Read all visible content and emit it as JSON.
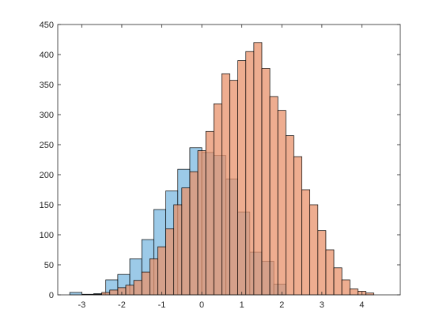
{
  "chart_data": {
    "type": "bar",
    "title": "",
    "xlabel": "",
    "ylabel": "",
    "xlim": [
      -3.6,
      4.96
    ],
    "ylim": [
      0,
      450
    ],
    "xticks": [
      -3,
      -2,
      -1,
      0,
      1,
      2,
      3,
      4
    ],
    "xtick_labels": [
      "-3",
      "-2",
      "-1",
      "0",
      "1",
      "2",
      "3",
      "4"
    ],
    "yticks": [
      0,
      50,
      100,
      150,
      200,
      250,
      300,
      350,
      400,
      450
    ],
    "ytick_labels": [
      "0",
      "50",
      "100",
      "150",
      "200",
      "250",
      "300",
      "350",
      "400",
      "450"
    ],
    "grid": false,
    "legend": "none",
    "box": true,
    "series": [
      {
        "color": "#0072BD",
        "face_color": "#5aa6d8",
        "opacity": 0.6,
        "bin_edges": [
          -3.3,
          -3.0,
          -2.7,
          -2.4,
          -2.1,
          -1.8,
          -1.5,
          -1.2,
          -0.9,
          -0.6,
          -0.3,
          0.0,
          0.3,
          0.6,
          0.9,
          1.2,
          1.5,
          1.8,
          2.1
        ],
        "counts": [
          4,
          1,
          2,
          25,
          34,
          60,
          92,
          142,
          173,
          209,
          245,
          237,
          232,
          193,
          138,
          71,
          56,
          18
        ]
      },
      {
        "color": "#D95319",
        "face_color": "#e8916b",
        "opacity": 0.75,
        "bin_edges": [
          -2.7,
          -2.5,
          -2.3,
          -2.1,
          -1.9,
          -1.7,
          -1.5,
          -1.3,
          -1.1,
          -0.9,
          -0.7,
          -0.5,
          -0.3,
          -0.1,
          0.1,
          0.3,
          0.5,
          0.7,
          0.9,
          1.1,
          1.3,
          1.5,
          1.7,
          1.9,
          2.1,
          2.3,
          2.5,
          2.7,
          2.9,
          3.1,
          3.3,
          3.5,
          3.7,
          3.9,
          4.1,
          4.3
        ],
        "counts": [
          1,
          4,
          8,
          12,
          16,
          24,
          38,
          60,
          80,
          110,
          150,
          178,
          205,
          240,
          272,
          318,
          368,
          357,
          390,
          405,
          420,
          377,
          330,
          307,
          265,
          230,
          175,
          150,
          107,
          75,
          45,
          25,
          10,
          6,
          3
        ]
      }
    ]
  }
}
